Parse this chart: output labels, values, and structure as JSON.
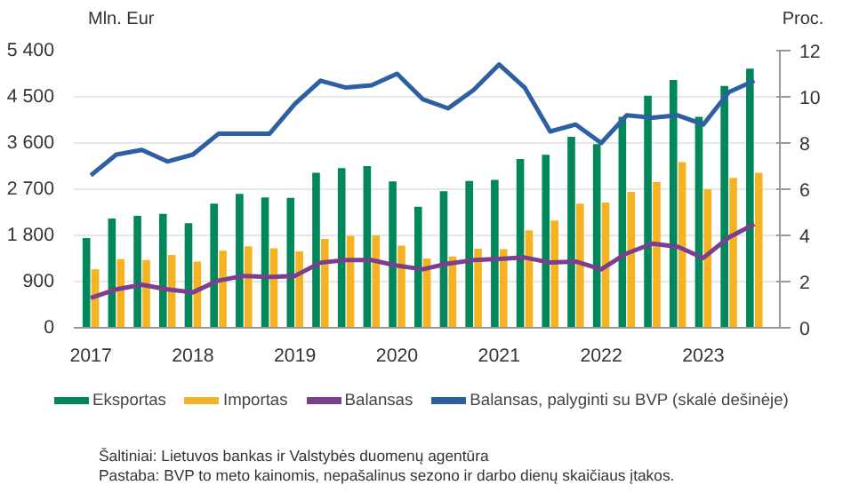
{
  "chart_data": {
    "type": "bar",
    "x": [
      "2017-01",
      "2017-04",
      "2017-07",
      "2017-10",
      "2018-01",
      "2018-04",
      "2018-07",
      "2018-10",
      "2019-01",
      "2019-04",
      "2019-07",
      "2019-10",
      "2020-01",
      "2020-04",
      "2020-07",
      "2020-10",
      "2021-01",
      "2021-04",
      "2021-07",
      "2021-10",
      "2022-01",
      "2022-04",
      "2022-07",
      "2022-10",
      "2023-01",
      "2023-04",
      "2023-07"
    ],
    "series": [
      {
        "name": "Eksportas",
        "color": "#00875a",
        "values": [
          1750,
          2130,
          2180,
          2220,
          2040,
          2420,
          2610,
          2540,
          2530,
          3020,
          3110,
          3150,
          2850,
          2360,
          2660,
          2860,
          2880,
          3290,
          3370,
          3720,
          3580,
          4110,
          4520,
          4830,
          4110,
          4710,
          5050
        ]
      },
      {
        "name": "Importas",
        "color": "#f5b324",
        "values": [
          1140,
          1340,
          1320,
          1420,
          1290,
          1500,
          1590,
          1550,
          1490,
          1730,
          1790,
          1800,
          1600,
          1350,
          1390,
          1540,
          1530,
          1900,
          2090,
          2420,
          2440,
          2650,
          2840,
          3230,
          2700,
          2920,
          3020
        ]
      },
      {
        "name": "Balansas",
        "type": "line",
        "color": "#7b3f8f",
        "values": [
          580,
          750,
          840,
          750,
          690,
          920,
          1010,
          990,
          1010,
          1270,
          1320,
          1320,
          1210,
          1140,
          1250,
          1320,
          1340,
          1370,
          1270,
          1290,
          1140,
          1450,
          1640,
          1580,
          1360,
          1760,
          2020
        ]
      },
      {
        "name": "Balansas, palyginti su BVP (skalė dešinėje)",
        "type": "line",
        "axis": "y2",
        "color": "#2e5fa3",
        "values": [
          6.6,
          7.5,
          7.7,
          7.2,
          7.5,
          8.4,
          8.4,
          8.4,
          9.7,
          10.7,
          10.4,
          10.5,
          11.0,
          9.9,
          9.5,
          10.3,
          11.4,
          10.4,
          8.5,
          8.8,
          8.0,
          9.2,
          9.1,
          9.2,
          8.8,
          10.2,
          10.7
        ]
      }
    ],
    "ylabel": "Mln. Eur",
    "y2label": "Proc.",
    "xlim": [
      "2016-11",
      "2023-10"
    ],
    "xticks": [
      {
        "value": "2017",
        "label": "2017"
      },
      {
        "value": "2018",
        "label": "2018"
      },
      {
        "value": "2019",
        "label": "2019"
      },
      {
        "value": "2020",
        "label": "2020"
      },
      {
        "value": "2021",
        "label": "2021"
      },
      {
        "value": "2022",
        "label": "2022"
      },
      {
        "value": "2023",
        "label": "2023"
      }
    ],
    "ylim": [
      0,
      5400
    ],
    "yticks": [
      0,
      900,
      {
        "value": 1800,
        "label": "1 800"
      },
      {
        "value": 2700,
        "label": "2 700"
      },
      {
        "value": 3600,
        "label": "3 600"
      },
      {
        "value": 4500,
        "label": "4 500"
      },
      {
        "value": 5400,
        "label": "5 400"
      }
    ],
    "y2lim": [
      0,
      12
    ],
    "y2ticks": [
      0,
      2,
      4,
      6,
      8,
      10,
      12
    ],
    "grid": "y",
    "legend": "bottom",
    "annotations": [
      "Šaltiniai:  Lietuvos bankas ir Valstybės duomenų agentūra",
      "Pastaba: BVP to meto kainomis, nepašalinus sezono ir darbo dienų skaičiaus įtakos."
    ]
  }
}
